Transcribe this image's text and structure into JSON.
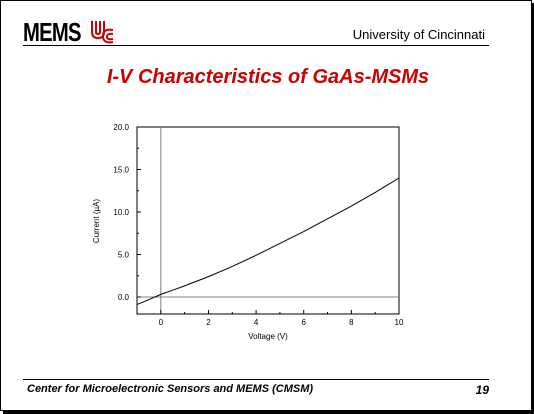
{
  "header": {
    "logo_text": "MEMS",
    "institution": "University of Cincinnati"
  },
  "slide": {
    "title": "I-V Characteristics of GaAs-MSMs"
  },
  "footer": {
    "center_name": "Center for Microelectronic Sensors and MEMS (CMSM)",
    "page_number": "19"
  },
  "colors": {
    "title": "#cc0000",
    "logo_mark": "#cc0000",
    "curve": "#000000"
  },
  "chart_data": {
    "type": "line",
    "title": "",
    "xlabel": "Voltage (V)",
    "ylabel": "Current (µA)",
    "xlim": [
      -1,
      10
    ],
    "ylim": [
      -2,
      20
    ],
    "x_ticks": [
      0,
      2,
      4,
      6,
      8,
      10
    ],
    "x_tick_labels": [
      "0",
      "2",
      "4",
      "6",
      "8",
      "10"
    ],
    "y_ticks": [
      0,
      5,
      10,
      15,
      20
    ],
    "y_tick_labels": [
      "0.0",
      "5.0",
      "10.0",
      "15.0",
      "20.0"
    ],
    "grid": false,
    "reference_lines": {
      "x": 0,
      "y": 0
    },
    "series": [
      {
        "x": [
          -1,
          -0.5,
          0,
          0.5,
          1,
          2,
          3,
          4,
          5,
          6,
          7,
          8,
          9,
          10
        ],
        "y": [
          -0.9,
          -0.3,
          0.3,
          0.8,
          1.3,
          2.4,
          3.6,
          4.9,
          6.3,
          7.7,
          9.2,
          10.7,
          12.3,
          14.0
        ]
      }
    ]
  }
}
